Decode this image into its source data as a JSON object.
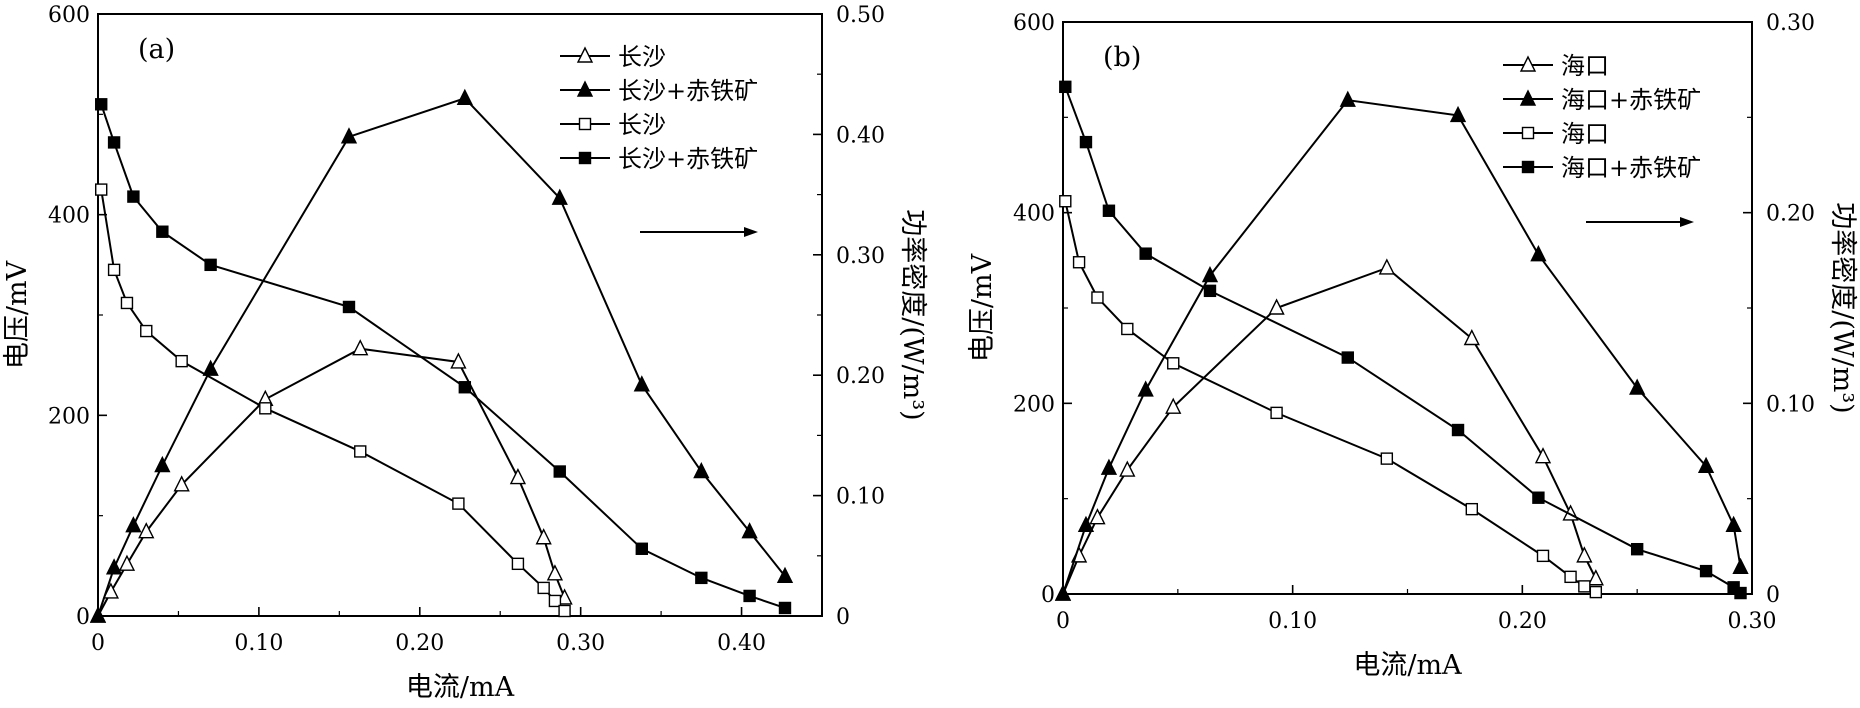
{
  "chart_data": [
    {
      "type": "line",
      "panel_label": "(a)",
      "xlabel": "电流/mA",
      "ylabel": "电压/mV",
      "y2label": "功率密度/(W/m³)",
      "xlim": [
        0,
        0.45
      ],
      "ylim": [
        0,
        600
      ],
      "y2lim": [
        0,
        0.5
      ],
      "x_ticks": [
        0,
        0.1,
        0.2,
        0.3,
        0.4
      ],
      "x_tick_labels": [
        "0",
        "0.10",
        "0.20",
        "0.30",
        "0.40"
      ],
      "y_ticks": [
        0,
        200,
        400,
        600
      ],
      "y_tick_labels": [
        "0",
        "200",
        "400",
        "600"
      ],
      "y2_ticks": [
        0,
        0.1,
        0.2,
        0.3,
        0.4,
        0.5
      ],
      "y2_tick_labels": [
        "0",
        "0.10",
        "0.20",
        "0.30",
        "0.40",
        "0.50"
      ],
      "legend_position": "top-right",
      "series": [
        {
          "name": "长沙",
          "axis": "right",
          "marker": "triangle-open",
          "x": [
            0,
            0.008,
            0.018,
            0.03,
            0.052,
            0.104,
            0.163,
            0.224,
            0.261,
            0.277,
            0.284,
            0.29
          ],
          "y": [
            0,
            0.02,
            0.043,
            0.07,
            0.109,
            0.18,
            0.222,
            0.211,
            0.115,
            0.065,
            0.035,
            0.015
          ]
        },
        {
          "name": "长沙+赤铁矿",
          "axis": "right",
          "marker": "triangle-filled",
          "x": [
            0,
            0.01,
            0.022,
            0.04,
            0.07,
            0.156,
            0.228,
            0.287,
            0.338,
            0.375,
            0.405,
            0.427
          ],
          "y": [
            0,
            0.04,
            0.075,
            0.125,
            0.205,
            0.398,
            0.43,
            0.347,
            0.192,
            0.12,
            0.07,
            0.033
          ]
        },
        {
          "name": "长沙",
          "axis": "left",
          "marker": "square-open",
          "x": [
            0.002,
            0.01,
            0.018,
            0.03,
            0.052,
            0.104,
            0.163,
            0.224,
            0.261,
            0.277,
            0.284,
            0.29
          ],
          "y": [
            425,
            345,
            312,
            284,
            254,
            207,
            164,
            112,
            52,
            28,
            15,
            5
          ]
        },
        {
          "name": "长沙+赤铁矿",
          "axis": "left",
          "marker": "square-filled",
          "x": [
            0.002,
            0.01,
            0.022,
            0.04,
            0.07,
            0.156,
            0.228,
            0.287,
            0.338,
            0.375,
            0.405,
            0.427
          ],
          "y": [
            510,
            472,
            418,
            383,
            350,
            308,
            228,
            144,
            67,
            38,
            20,
            8
          ]
        }
      ]
    },
    {
      "type": "line",
      "panel_label": "(b)",
      "xlabel": "电流/mA",
      "ylabel": "电压/mV",
      "y2label": "功率密度/(W/m³)",
      "xlim": [
        0,
        0.3
      ],
      "ylim": [
        0,
        600
      ],
      "y2lim": [
        0,
        0.3
      ],
      "x_ticks": [
        0,
        0.1,
        0.2,
        0.3
      ],
      "x_tick_labels": [
        "0",
        "0.10",
        "0.20",
        "0.30"
      ],
      "y_ticks": [
        0,
        200,
        400,
        600
      ],
      "y_tick_labels": [
        "0",
        "200",
        "400",
        "600"
      ],
      "y2_ticks": [
        0,
        0.1,
        0.2,
        0.3
      ],
      "y2_tick_labels": [
        "0",
        "0.10",
        "0.20",
        "0.30"
      ],
      "legend_position": "top-right",
      "series": [
        {
          "name": "海口",
          "axis": "right",
          "marker": "triangle-open",
          "x": [
            0,
            0.007,
            0.015,
            0.028,
            0.048,
            0.093,
            0.141,
            0.178,
            0.209,
            0.221,
            0.227,
            0.232
          ],
          "y": [
            0,
            0.02,
            0.04,
            0.065,
            0.098,
            0.15,
            0.171,
            0.134,
            0.072,
            0.042,
            0.02,
            0.008
          ]
        },
        {
          "name": "海口+赤铁矿",
          "axis": "right",
          "marker": "triangle-filled",
          "x": [
            0,
            0.01,
            0.02,
            0.036,
            0.064,
            0.124,
            0.172,
            0.207,
            0.25,
            0.28,
            0.292,
            0.295
          ],
          "y": [
            0,
            0.036,
            0.066,
            0.107,
            0.167,
            0.259,
            0.251,
            0.178,
            0.108,
            0.067,
            0.036,
            0.014
          ]
        },
        {
          "name": "海口",
          "axis": "left",
          "marker": "square-open",
          "x": [
            0.001,
            0.007,
            0.015,
            0.028,
            0.048,
            0.093,
            0.141,
            0.178,
            0.209,
            0.221,
            0.227,
            0.232
          ],
          "y": [
            412,
            348,
            311,
            278,
            242,
            190,
            142,
            89,
            40,
            18,
            8,
            2
          ]
        },
        {
          "name": "海口+赤铁矿",
          "axis": "left",
          "marker": "square-filled",
          "x": [
            0.001,
            0.01,
            0.02,
            0.036,
            0.064,
            0.124,
            0.172,
            0.207,
            0.25,
            0.28,
            0.292,
            0.295
          ],
          "y": [
            532,
            474,
            402,
            357,
            318,
            248,
            172,
            101,
            47,
            24,
            7,
            1
          ]
        }
      ]
    }
  ]
}
